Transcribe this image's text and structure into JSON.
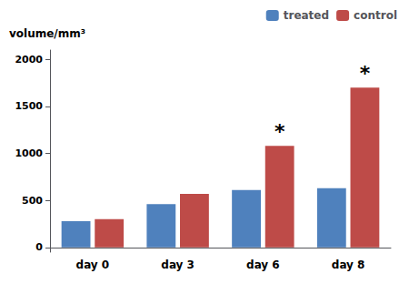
{
  "chart_data": {
    "type": "bar",
    "categories": [
      "day 0",
      "day 3",
      "day 6",
      "day 8"
    ],
    "series": [
      {
        "name": "treated",
        "color": "#4f81bd",
        "values": [
          280,
          460,
          610,
          630
        ]
      },
      {
        "name": "control",
        "color": "#be4b48",
        "values": [
          300,
          570,
          1080,
          1700
        ]
      }
    ],
    "ylabel": "volume/mm³",
    "ylim": [
      -50,
      2100
    ],
    "yticks": [
      0,
      500,
      1000,
      1500,
      2000
    ],
    "grid": false,
    "legend": "upper right",
    "annotations": [
      {
        "text": "*",
        "x": "day 6",
        "series": "control"
      },
      {
        "text": "*",
        "x": "day 8",
        "series": "control"
      }
    ]
  }
}
